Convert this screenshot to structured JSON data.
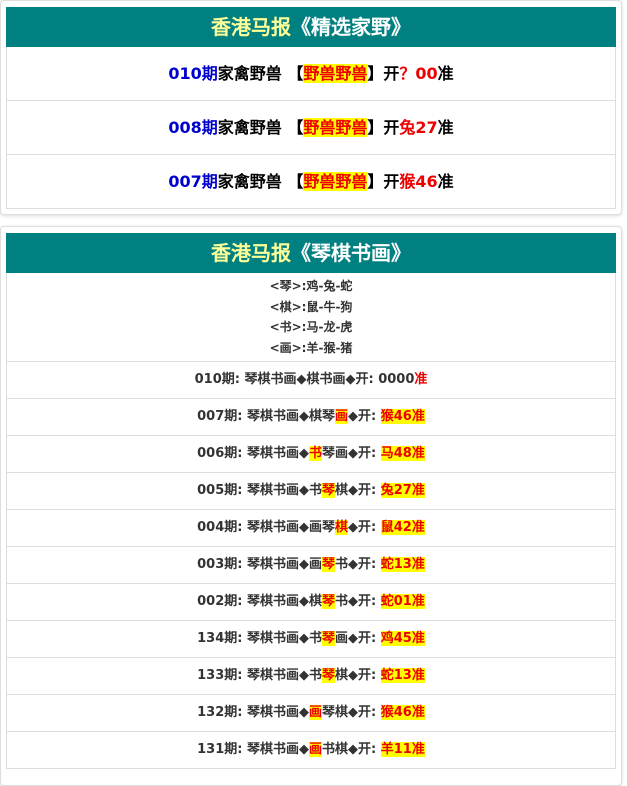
{
  "panel1": {
    "title": "香港马报",
    "subtitle": "《精选家野》",
    "rows": [
      [
        {
          "t": "010期",
          "s": "blue"
        },
        {
          "t": "家禽野兽 【",
          "s": "plain"
        },
        {
          "t": "野兽野兽",
          "s": "hl"
        },
        {
          "t": "】开",
          "s": "plain"
        },
        {
          "t": "？00",
          "s": "red"
        },
        {
          "t": "准",
          "s": "plain"
        }
      ],
      [
        {
          "t": "008期",
          "s": "blue"
        },
        {
          "t": "家禽野兽 【",
          "s": "plain"
        },
        {
          "t": "野兽野兽",
          "s": "hl"
        },
        {
          "t": "】开",
          "s": "plain"
        },
        {
          "t": "兔27",
          "s": "red"
        },
        {
          "t": "准",
          "s": "plain"
        }
      ],
      [
        {
          "t": "007期",
          "s": "blue"
        },
        {
          "t": "家禽野兽 【",
          "s": "plain"
        },
        {
          "t": "野兽野兽",
          "s": "hl"
        },
        {
          "t": "】开",
          "s": "plain"
        },
        {
          "t": "猴46",
          "s": "red"
        },
        {
          "t": "准",
          "s": "plain"
        }
      ]
    ]
  },
  "panel2": {
    "title": "香港马报",
    "subtitle": "《琴棋书画》",
    "legend": [
      "<琴>:鸡-兔-蛇",
      "<棋>:鼠-牛-狗",
      "<书>:马-龙-虎",
      "<画>:羊-猴-猪"
    ],
    "rows": [
      [
        {
          "t": "010期: 琴棋书画◆棋书画◆开: 0000",
          "s": "plain"
        },
        {
          "t": "准",
          "s": "red"
        }
      ],
      [
        {
          "t": "007期: 琴棋书画◆棋琴",
          "s": "plain"
        },
        {
          "t": "画",
          "s": "hl"
        },
        {
          "t": "◆开: ",
          "s": "plain"
        },
        {
          "t": "猴46准",
          "s": "hl"
        }
      ],
      [
        {
          "t": "006期: 琴棋书画◆",
          "s": "plain"
        },
        {
          "t": "书",
          "s": "hl"
        },
        {
          "t": "琴画◆开: ",
          "s": "plain"
        },
        {
          "t": "马48准",
          "s": "hl"
        }
      ],
      [
        {
          "t": "005期: 琴棋书画◆书",
          "s": "plain"
        },
        {
          "t": "琴",
          "s": "hl"
        },
        {
          "t": "棋◆开: ",
          "s": "plain"
        },
        {
          "t": "兔27准",
          "s": "hl"
        }
      ],
      [
        {
          "t": "004期: 琴棋书画◆画琴",
          "s": "plain"
        },
        {
          "t": "棋",
          "s": "hl"
        },
        {
          "t": "◆开: ",
          "s": "plain"
        },
        {
          "t": "鼠42准",
          "s": "hl"
        }
      ],
      [
        {
          "t": "003期: 琴棋书画◆画",
          "s": "plain"
        },
        {
          "t": "琴",
          "s": "hl"
        },
        {
          "t": "书◆开: ",
          "s": "plain"
        },
        {
          "t": "蛇13准",
          "s": "hl"
        }
      ],
      [
        {
          "t": "002期: 琴棋书画◆棋",
          "s": "plain"
        },
        {
          "t": "琴",
          "s": "hl"
        },
        {
          "t": "书◆开: ",
          "s": "plain"
        },
        {
          "t": "蛇01准",
          "s": "hl"
        }
      ],
      [
        {
          "t": "134期: 琴棋书画◆书",
          "s": "plain"
        },
        {
          "t": "琴",
          "s": "hl"
        },
        {
          "t": "画◆开: ",
          "s": "plain"
        },
        {
          "t": "鸡45准",
          "s": "hl"
        }
      ],
      [
        {
          "t": "133期: 琴棋书画◆书",
          "s": "plain"
        },
        {
          "t": "琴",
          "s": "hl"
        },
        {
          "t": "棋◆开: ",
          "s": "plain"
        },
        {
          "t": "蛇13准",
          "s": "hl"
        }
      ],
      [
        {
          "t": "132期: 琴棋书画◆",
          "s": "plain"
        },
        {
          "t": "画",
          "s": "hl"
        },
        {
          "t": "琴棋◆开: ",
          "s": "plain"
        },
        {
          "t": "猴46准",
          "s": "hl"
        }
      ],
      [
        {
          "t": "131期: 琴棋书画◆",
          "s": "plain"
        },
        {
          "t": "画",
          "s": "hl"
        },
        {
          "t": "书棋◆开: ",
          "s": "plain"
        },
        {
          "t": "羊11准",
          "s": "hl"
        }
      ]
    ]
  }
}
